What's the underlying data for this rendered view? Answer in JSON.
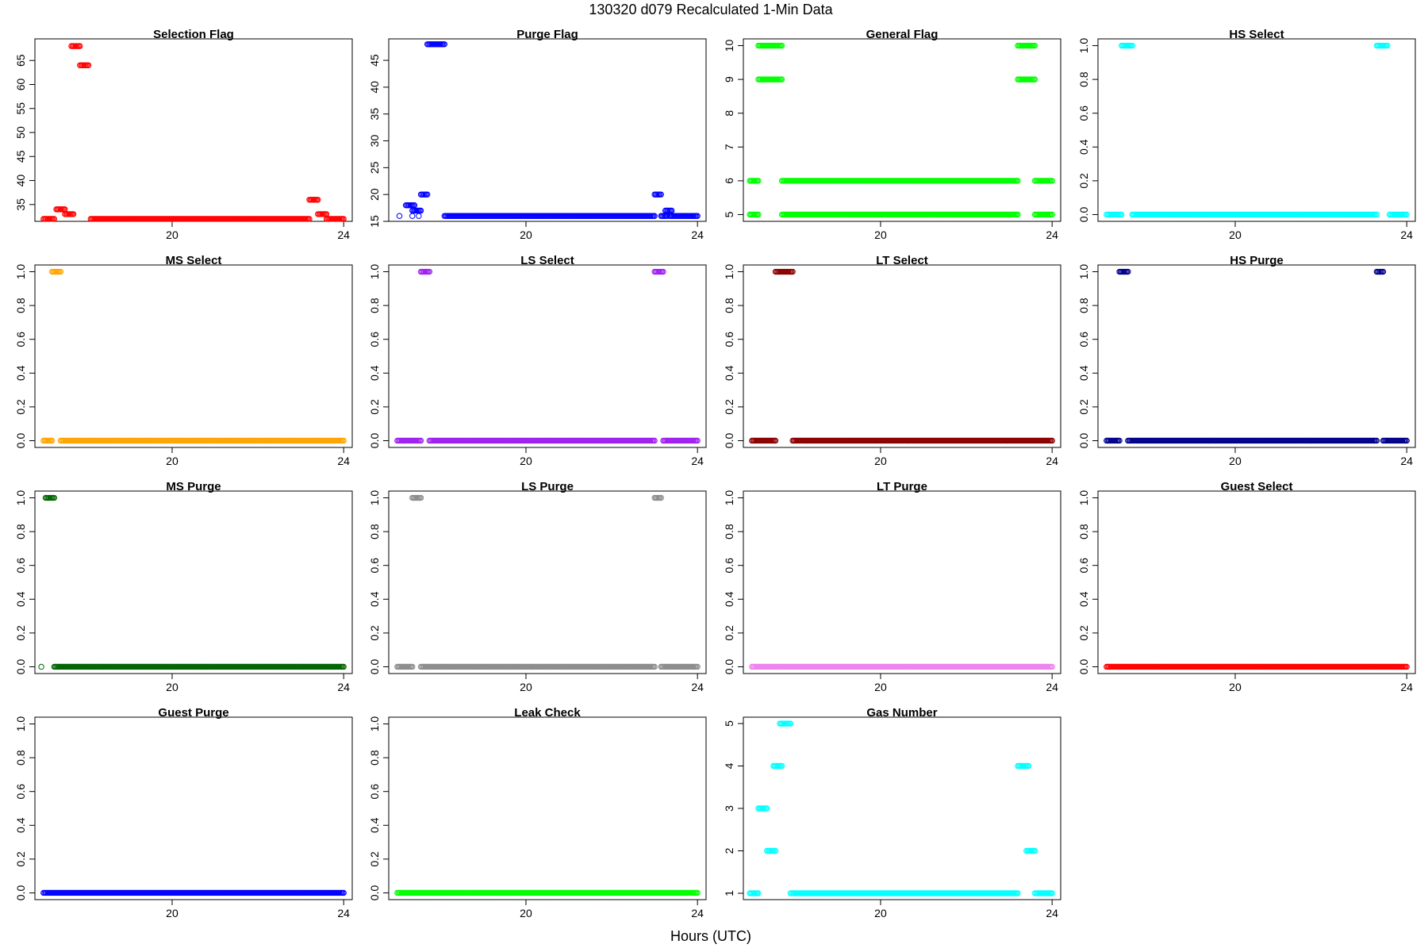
{
  "figure": {
    "title": "130320   d079   Recalculated 1-Min Data",
    "xlabel": "Hours (UTC)"
  },
  "chart_data": [
    {
      "type": "scatter",
      "title": "Selection Flag",
      "color": "#ff0000",
      "xlim": [
        16.8,
        24.2
      ],
      "ylim": [
        31.5,
        69.5
      ],
      "xticks": [
        20,
        24
      ],
      "yticks": [
        35,
        40,
        45,
        50,
        55,
        60,
        65
      ],
      "segments": [
        [
          17.0,
          17.25,
          32
        ],
        [
          17.3,
          17.5,
          34
        ],
        [
          17.5,
          17.7,
          33
        ],
        [
          17.65,
          17.85,
          68
        ],
        [
          17.85,
          18.05,
          64
        ],
        [
          18.1,
          23.2,
          32
        ],
        [
          23.2,
          23.4,
          36
        ],
        [
          23.4,
          23.6,
          33
        ],
        [
          23.6,
          24.0,
          32
        ]
      ],
      "points": []
    },
    {
      "type": "scatter",
      "title": "Purge Flag",
      "color": "#0000ff",
      "xlim": [
        16.8,
        24.2
      ],
      "ylim": [
        15,
        49
      ],
      "xticks": [
        20,
        24
      ],
      "yticks": [
        15,
        20,
        25,
        30,
        35,
        40,
        45
      ],
      "segments": [
        [
          17.2,
          17.4,
          18
        ],
        [
          17.35,
          17.55,
          17
        ],
        [
          17.55,
          17.7,
          20
        ],
        [
          17.7,
          18.1,
          48
        ],
        [
          18.1,
          23.0,
          16
        ],
        [
          23.0,
          23.15,
          20
        ],
        [
          23.15,
          23.3,
          16
        ],
        [
          23.25,
          23.4,
          17
        ],
        [
          23.35,
          24.0,
          16
        ]
      ],
      "points": [
        [
          17.05,
          16
        ],
        [
          17.35,
          16
        ],
        [
          17.5,
          16
        ]
      ]
    },
    {
      "type": "scatter",
      "title": "General Flag",
      "color": "#00ff00",
      "xlim": [
        16.8,
        24.2
      ],
      "ylim": [
        4.8,
        10.2
      ],
      "xticks": [
        20,
        24
      ],
      "yticks": [
        5,
        6,
        7,
        8,
        9,
        10
      ],
      "segments": [
        [
          16.95,
          17.15,
          6
        ],
        [
          16.95,
          17.15,
          5
        ],
        [
          17.15,
          17.7,
          10
        ],
        [
          17.15,
          17.7,
          9
        ],
        [
          17.7,
          23.2,
          6
        ],
        [
          17.7,
          23.2,
          5
        ],
        [
          23.2,
          23.6,
          10
        ],
        [
          23.2,
          23.6,
          9
        ],
        [
          23.6,
          24.0,
          6
        ],
        [
          23.6,
          24.0,
          5
        ]
      ],
      "points": []
    },
    {
      "type": "scatter",
      "title": "HS Select",
      "color": "#00ffff",
      "xlim": [
        16.8,
        24.2
      ],
      "ylim": [
        -0.04,
        1.04
      ],
      "xticks": [
        20,
        24
      ],
      "yticks": [
        0.0,
        0.2,
        0.4,
        0.6,
        0.8,
        1.0
      ],
      "segments": [
        [
          17.0,
          17.35,
          0
        ],
        [
          17.35,
          17.6,
          1
        ],
        [
          17.6,
          23.3,
          0
        ],
        [
          23.3,
          23.55,
          1
        ],
        [
          23.6,
          24.0,
          0
        ]
      ],
      "points": []
    },
    {
      "type": "scatter",
      "title": "MS Select",
      "color": "#ffa500",
      "xlim": [
        16.8,
        24.2
      ],
      "ylim": [
        -0.04,
        1.04
      ],
      "xticks": [
        20,
        24
      ],
      "yticks": [
        0.0,
        0.2,
        0.4,
        0.6,
        0.8,
        1.0
      ],
      "segments": [
        [
          17.0,
          17.2,
          0
        ],
        [
          17.2,
          17.4,
          1
        ],
        [
          17.4,
          24.0,
          0
        ]
      ],
      "points": []
    },
    {
      "type": "scatter",
      "title": "LS Select",
      "color": "#a020f0",
      "xlim": [
        16.8,
        24.2
      ],
      "ylim": [
        -0.04,
        1.04
      ],
      "xticks": [
        20,
        24
      ],
      "yticks": [
        0.0,
        0.2,
        0.4,
        0.6,
        0.8,
        1.0
      ],
      "segments": [
        [
          17.0,
          17.55,
          0
        ],
        [
          17.55,
          17.75,
          1
        ],
        [
          17.75,
          23.0,
          0
        ],
        [
          23.0,
          23.2,
          1
        ],
        [
          23.2,
          24.0,
          0
        ]
      ],
      "points": []
    },
    {
      "type": "scatter",
      "title": "LT Select",
      "color": "#8b0000",
      "xlim": [
        16.8,
        24.2
      ],
      "ylim": [
        -0.04,
        1.04
      ],
      "xticks": [
        20,
        24
      ],
      "yticks": [
        0.0,
        0.2,
        0.4,
        0.6,
        0.8,
        1.0
      ],
      "segments": [
        [
          17.0,
          17.55,
          0
        ],
        [
          17.55,
          17.95,
          1
        ],
        [
          17.95,
          24.0,
          0
        ]
      ],
      "points": []
    },
    {
      "type": "scatter",
      "title": "HS Purge",
      "color": "#00008b",
      "xlim": [
        16.8,
        24.2
      ],
      "ylim": [
        -0.04,
        1.04
      ],
      "xticks": [
        20,
        24
      ],
      "yticks": [
        0.0,
        0.2,
        0.4,
        0.6,
        0.8,
        1.0
      ],
      "segments": [
        [
          17.0,
          17.3,
          0
        ],
        [
          17.3,
          17.5,
          1
        ],
        [
          17.5,
          23.3,
          0
        ],
        [
          23.3,
          23.45,
          1
        ],
        [
          23.45,
          24.0,
          0
        ]
      ],
      "points": []
    },
    {
      "type": "scatter",
      "title": "MS Purge",
      "color": "#006400",
      "xlim": [
        16.8,
        24.2
      ],
      "ylim": [
        -0.04,
        1.04
      ],
      "xticks": [
        20,
        24
      ],
      "yticks": [
        0.0,
        0.2,
        0.4,
        0.6,
        0.8,
        1.0
      ],
      "segments": [
        [
          17.05,
          17.25,
          1
        ],
        [
          17.25,
          24.0,
          0
        ]
      ],
      "points": [
        [
          16.95,
          0
        ]
      ]
    },
    {
      "type": "scatter",
      "title": "LS Purge",
      "color": "#8c8c8c",
      "xlim": [
        16.8,
        24.2
      ],
      "ylim": [
        -0.04,
        1.04
      ],
      "xticks": [
        20,
        24
      ],
      "yticks": [
        0.0,
        0.2,
        0.4,
        0.6,
        0.8,
        1.0
      ],
      "segments": [
        [
          17.0,
          17.35,
          0
        ],
        [
          17.35,
          17.55,
          1
        ],
        [
          17.55,
          23.0,
          0
        ],
        [
          23.0,
          23.15,
          1
        ],
        [
          23.15,
          24.0,
          0
        ]
      ],
      "points": []
    },
    {
      "type": "scatter",
      "title": "LT Purge",
      "color": "#ee82ee",
      "xlim": [
        16.8,
        24.2
      ],
      "ylim": [
        -0.04,
        1.04
      ],
      "xticks": [
        20,
        24
      ],
      "yticks": [
        0.0,
        0.2,
        0.4,
        0.6,
        0.8,
        1.0
      ],
      "segments": [
        [
          17.0,
          24.0,
          0
        ]
      ],
      "points": []
    },
    {
      "type": "scatter",
      "title": "Guest Select",
      "color": "#ff0000",
      "xlim": [
        16.8,
        24.2
      ],
      "ylim": [
        -0.04,
        1.04
      ],
      "xticks": [
        20,
        24
      ],
      "yticks": [
        0.0,
        0.2,
        0.4,
        0.6,
        0.8,
        1.0
      ],
      "segments": [
        [
          17.0,
          24.0,
          0
        ]
      ],
      "points": []
    },
    {
      "type": "scatter",
      "title": "Guest Purge",
      "color": "#0000ff",
      "xlim": [
        16.8,
        24.2
      ],
      "ylim": [
        -0.04,
        1.04
      ],
      "xticks": [
        20,
        24
      ],
      "yticks": [
        0.0,
        0.2,
        0.4,
        0.6,
        0.8,
        1.0
      ],
      "segments": [
        [
          17.0,
          24.0,
          0
        ]
      ],
      "points": []
    },
    {
      "type": "scatter",
      "title": "Leak Check",
      "color": "#00ff00",
      "xlim": [
        16.8,
        24.2
      ],
      "ylim": [
        -0.04,
        1.04
      ],
      "xticks": [
        20,
        24
      ],
      "yticks": [
        0.0,
        0.2,
        0.4,
        0.6,
        0.8,
        1.0
      ],
      "segments": [
        [
          17.0,
          24.0,
          0
        ]
      ],
      "points": []
    },
    {
      "type": "scatter",
      "title": "Gas Number",
      "color": "#00ffff",
      "xlim": [
        16.8,
        24.2
      ],
      "ylim": [
        0.85,
        5.15
      ],
      "xticks": [
        20,
        24
      ],
      "yticks": [
        1,
        2,
        3,
        4,
        5
      ],
      "segments": [
        [
          16.95,
          17.15,
          1
        ],
        [
          17.15,
          17.35,
          3
        ],
        [
          17.35,
          17.55,
          2
        ],
        [
          17.5,
          17.7,
          4
        ],
        [
          17.65,
          17.9,
          5
        ],
        [
          17.9,
          23.2,
          1
        ],
        [
          23.2,
          23.45,
          4
        ],
        [
          23.4,
          23.6,
          2
        ],
        [
          23.6,
          24.0,
          1
        ]
      ],
      "points": []
    }
  ]
}
